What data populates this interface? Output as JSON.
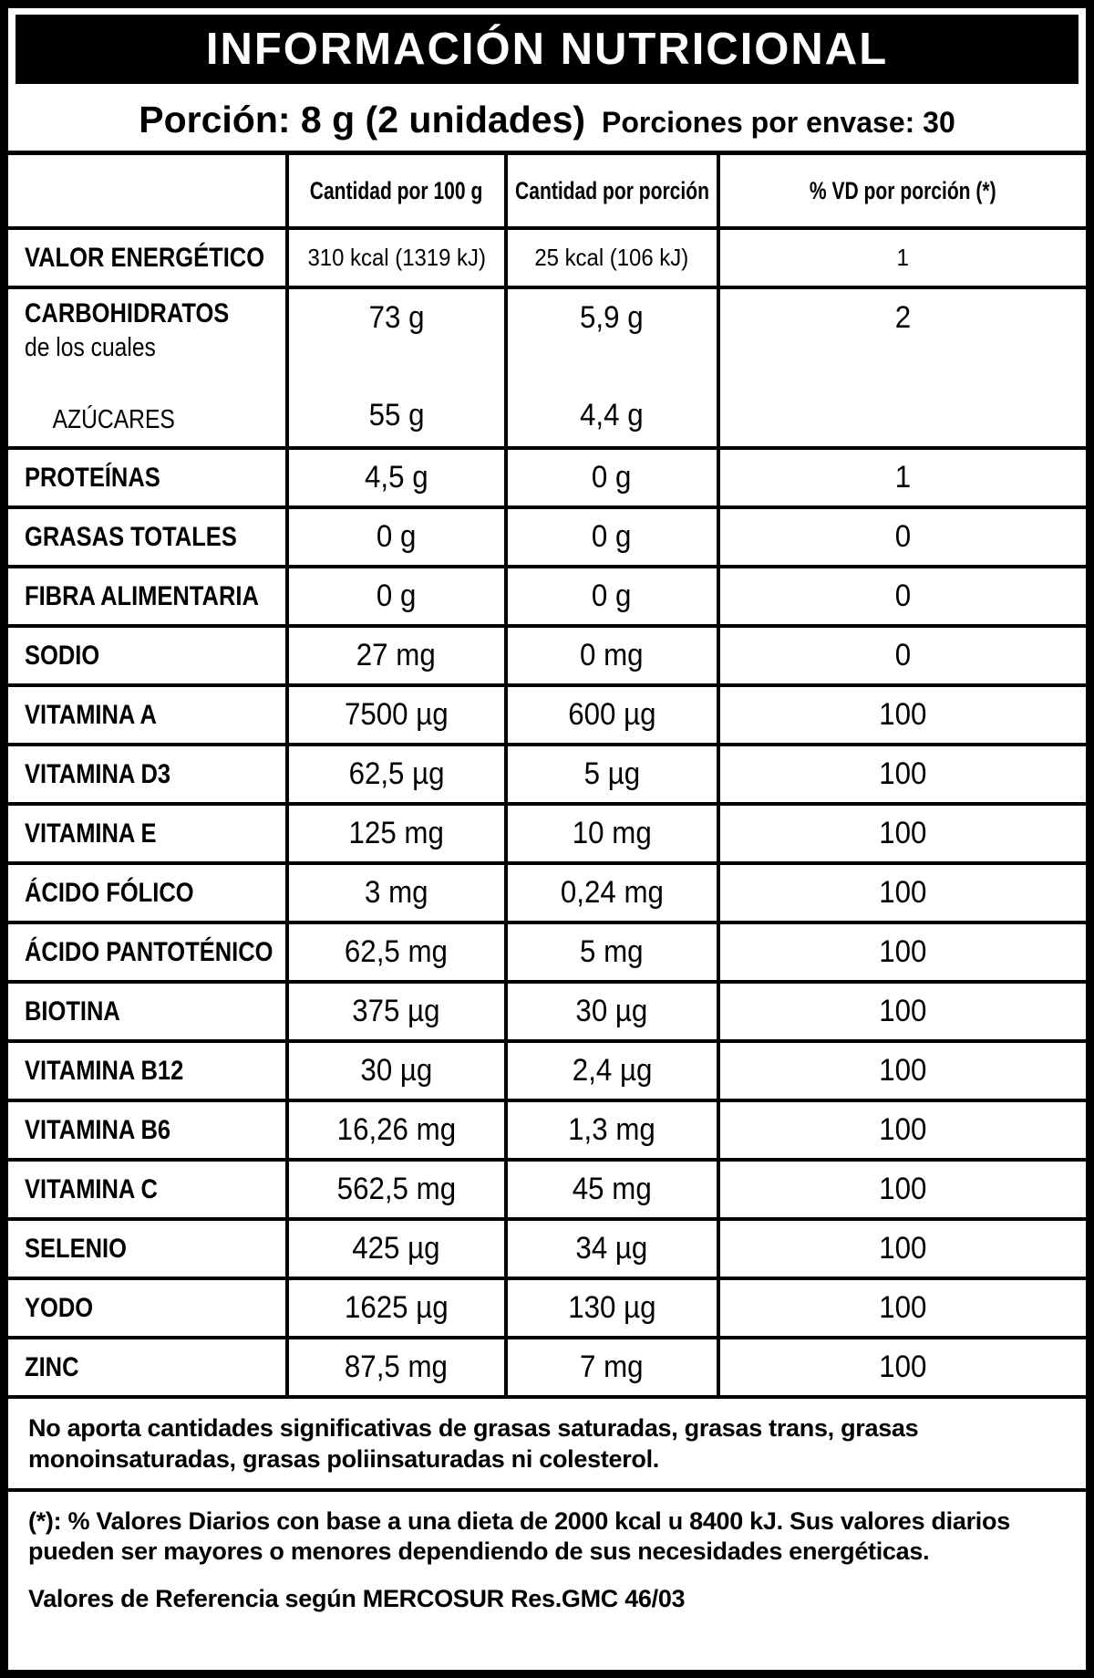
{
  "title": "INFORMACIÓN NUTRICIONAL",
  "serving": {
    "portion": "Porción: 8 g (2 unidades)",
    "per_package": "Porciones por envase: 30"
  },
  "table": {
    "col_headers": {
      "per100": "Cantidad por 100 g",
      "portion": "Cantidad por porción",
      "vd": "% VD por porción (*)"
    },
    "rows": [
      {
        "type": "simple",
        "name": "VALOR ENERGÉTICO",
        "per100": "310 kcal (1319 kJ)",
        "portion": "25 kcal (106 kJ)",
        "vd": "1"
      },
      {
        "type": "carb",
        "name": "CARBOHIDRATOS",
        "sub1": "de los cuales",
        "sub2": "AZÚCARES",
        "per100_top": "73 g",
        "per100_bottom": "55 g",
        "portion_top": "5,9 g",
        "portion_bottom": "4,4 g",
        "vd": "2"
      },
      {
        "type": "simple",
        "name": "PROTEÍNAS",
        "per100": "4,5 g",
        "portion": "0 g",
        "vd": "1"
      },
      {
        "type": "simple",
        "name": "GRASAS TOTALES",
        "per100": "0 g",
        "portion": "0 g",
        "vd": "0"
      },
      {
        "type": "simple",
        "name": "FIBRA ALIMENTARIA",
        "per100": "0 g",
        "portion": "0 g",
        "vd": "0"
      },
      {
        "type": "simple",
        "name": "SODIO",
        "per100": "27 mg",
        "portion": "0 mg",
        "vd": "0"
      },
      {
        "type": "simple",
        "name": "VITAMINA A",
        "per100": "7500 µg",
        "portion": "600 µg",
        "vd": "100"
      },
      {
        "type": "simple",
        "name": "VITAMINA D3",
        "per100": "62,5 µg",
        "portion": "5 µg",
        "vd": "100"
      },
      {
        "type": "simple",
        "name": "VITAMINA E",
        "per100": "125 mg",
        "portion": "10 mg",
        "vd": "100"
      },
      {
        "type": "simple",
        "name": "ÁCIDO FÓLICO",
        "per100": "3 mg",
        "portion": "0,24 mg",
        "vd": "100"
      },
      {
        "type": "simple",
        "name": "ÁCIDO PANTOTÉNICO",
        "per100": "62,5 mg",
        "portion": "5 mg",
        "vd": "100"
      },
      {
        "type": "simple",
        "name": "BIOTINA",
        "per100": "375 µg",
        "portion": "30 µg",
        "vd": "100"
      },
      {
        "type": "simple",
        "name": "VITAMINA B12",
        "per100": "30 µg",
        "portion": "2,4 µg",
        "vd": "100"
      },
      {
        "type": "simple",
        "name": "VITAMINA B6",
        "per100": "16,26 mg",
        "portion": "1,3 mg",
        "vd": "100"
      },
      {
        "type": "simple",
        "name": "VITAMINA C",
        "per100": "562,5 mg",
        "portion": "45 mg",
        "vd": "100"
      },
      {
        "type": "simple",
        "name": "SELENIO",
        "per100": "425 µg",
        "portion": "34 µg",
        "vd": "100"
      },
      {
        "type": "simple",
        "name": "YODO",
        "per100": "1625 µg",
        "portion": "130 µg",
        "vd": "100"
      },
      {
        "type": "simple",
        "name": "ZINC",
        "per100": "87,5 mg",
        "portion": "7 mg",
        "vd": "100"
      }
    ]
  },
  "notes": {
    "no_significant": "No aporta cantidades significativas de grasas saturadas, grasas trans, grasas monoinsaturadas, grasas poliinsaturadas ni colesterol.",
    "daily_values": "(*): % Valores Diarios con base a una dieta de 2000 kcal u 8400 kJ. Sus valores diarios pueden ser mayores o menores dependiendo de sus necesidades energéticas.",
    "reference": "Valores de Referencia según MERCOSUR Res.GMC 46/03"
  }
}
